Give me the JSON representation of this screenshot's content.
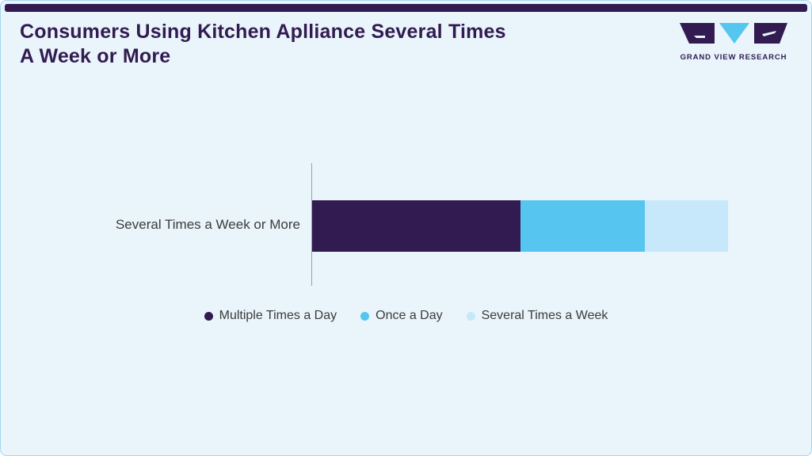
{
  "header": {
    "title": "Consumers Using Kitchen Aplliance Several Times A Week or More",
    "logo_text": "GRAND VIEW RESEARCH"
  },
  "chart_data": {
    "type": "bar",
    "orientation": "horizontal",
    "stacked": true,
    "title": "Consumers Using Kitchen Aplliance Several Times A Week or More",
    "categories": [
      "Several Times a Week or More"
    ],
    "series": [
      {
        "name": "Multiple Times a Day",
        "value": 50,
        "color": "#321b50"
      },
      {
        "name": "Once a Day",
        "value": 30,
        "color": "#56c5f0"
      },
      {
        "name": "Several Times a Week",
        "value": 20,
        "color": "#c6e8fa"
      }
    ],
    "values_estimated_percent_of_bar": true,
    "xlim": [
      0,
      100
    ],
    "grid": false,
    "legend_position": "bottom"
  },
  "colors": {
    "background": "#e9f4fb",
    "border": "#a5d8f2",
    "accent_dark": "#321b50",
    "accent_cyan": "#56c5f0",
    "accent_light": "#c6e8fa",
    "text": "#3c3c3c"
  }
}
